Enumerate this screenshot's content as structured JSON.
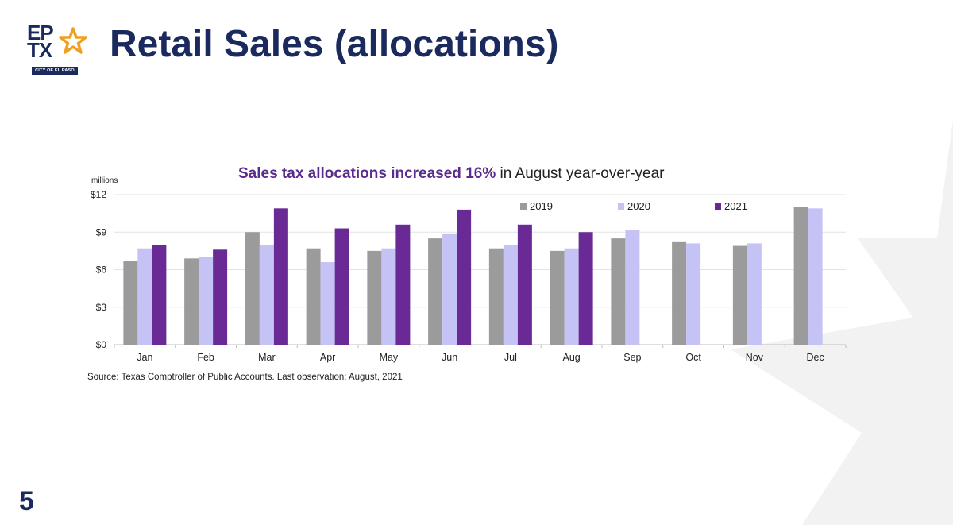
{
  "header": {
    "title": "Retail Sales (allocations)",
    "logo": {
      "line1": "EP",
      "line2": "TX",
      "caption": "CITY OF EL PASO",
      "icon": "star-icon"
    }
  },
  "footer": {
    "page_number": "5"
  },
  "colors": {
    "navy": "#1b2a5e",
    "gold": "#f0a020",
    "series_2019": "#9b9b9b",
    "series_2020": "#c5c3f6",
    "series_2021": "#6a2a95",
    "title_highlight": "#5b2a8e"
  },
  "chart_data": {
    "type": "bar",
    "title": {
      "highlight": "Sales tax allocations increased 16%",
      "rest": " in August year-over-year"
    },
    "unit_label": "millions",
    "categories": [
      "Jan",
      "Feb",
      "Mar",
      "Apr",
      "May",
      "Jun",
      "Jul",
      "Aug",
      "Sep",
      "Oct",
      "Nov",
      "Dec"
    ],
    "series": [
      {
        "name": "2019",
        "values": [
          6.7,
          6.9,
          9.0,
          7.7,
          7.5,
          8.5,
          7.7,
          7.5,
          8.5,
          8.2,
          7.9,
          11.0
        ]
      },
      {
        "name": "2020",
        "values": [
          7.7,
          7.0,
          8.0,
          6.6,
          7.7,
          8.9,
          8.0,
          7.7,
          9.2,
          8.1,
          8.1,
          10.9
        ]
      },
      {
        "name": "2021",
        "values": [
          8.0,
          7.6,
          10.9,
          9.3,
          9.6,
          10.8,
          9.6,
          9.0,
          null,
          null,
          null,
          null
        ]
      }
    ],
    "yticks": [
      "$0",
      "$3",
      "$6",
      "$9",
      "$12"
    ],
    "ylim": [
      0,
      12
    ],
    "grid": true,
    "legend_position": "top-right",
    "source": "Source: Texas Comptroller of Public Accounts. Last observation: August, 2021"
  }
}
